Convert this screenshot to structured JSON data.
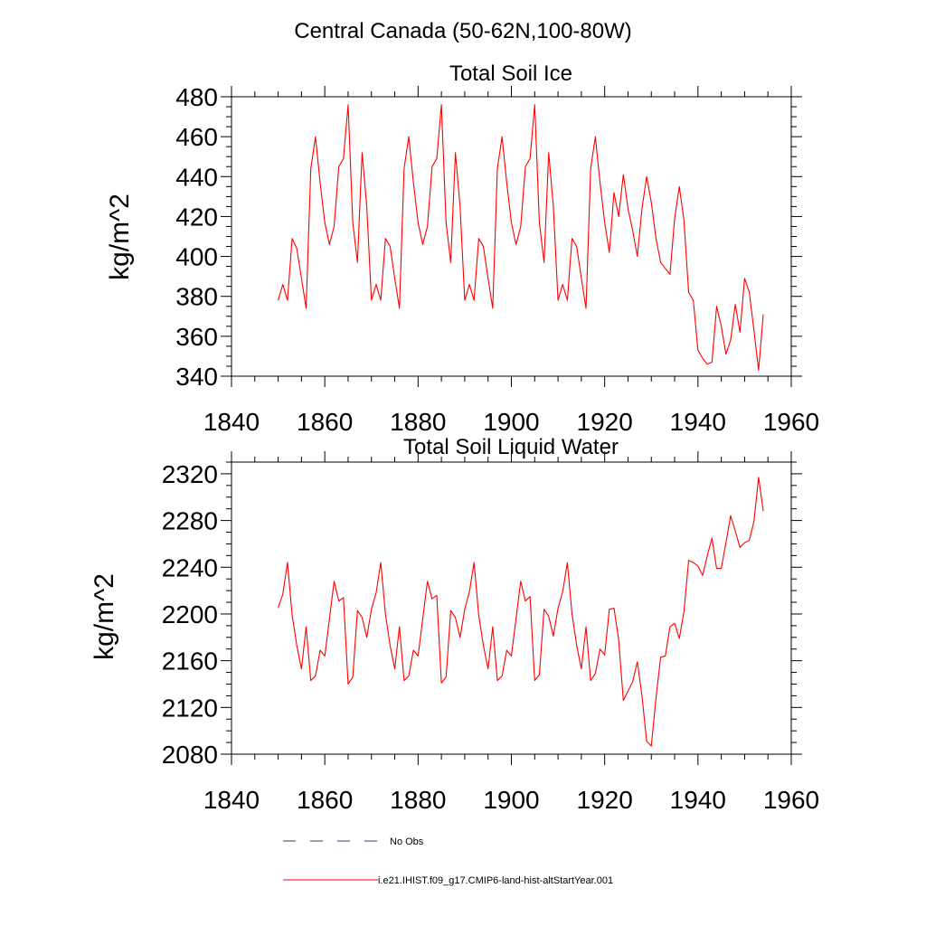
{
  "suptitle": "Central Canada (50-62N,100-80W)",
  "legend": [
    {
      "label": "No Obs",
      "color": "#3a3a7a",
      "dash": true
    },
    {
      "label": "i.e21.IHIST.f09_g17.CMIP6-land-hist-altStartYear.001",
      "color": "#ff0000",
      "dash": false
    }
  ],
  "chart_data": [
    {
      "type": "line",
      "title": "Total Soil Ice",
      "xlabel": "",
      "ylabel": "kg/m^2",
      "xlim": [
        1840,
        1960
      ],
      "ylim": [
        340,
        480
      ],
      "xticks": [
        1840,
        1860,
        1880,
        1900,
        1920,
        1940,
        1960
      ],
      "yticks": [
        340,
        360,
        380,
        400,
        420,
        440,
        460,
        480
      ],
      "grid": false,
      "series": [
        {
          "color": "#ff0000",
          "x": [
            1850,
            1851,
            1852,
            1853,
            1854,
            1855,
            1856,
            1857,
            1858,
            1859,
            1860,
            1861,
            1862,
            1863,
            1864,
            1865,
            1866,
            1867,
            1868,
            1869,
            1870,
            1871,
            1872,
            1873,
            1874,
            1875,
            1876,
            1877,
            1878,
            1879,
            1880,
            1881,
            1882,
            1883,
            1884,
            1885,
            1886,
            1887,
            1888,
            1889,
            1890,
            1891,
            1892,
            1893,
            1894,
            1895,
            1896,
            1897,
            1898,
            1899,
            1900,
            1901,
            1902,
            1903,
            1904,
            1905,
            1906,
            1907,
            1908,
            1909,
            1910,
            1911,
            1912,
            1913,
            1914,
            1915,
            1916,
            1917,
            1918,
            1919,
            1920,
            1921,
            1922,
            1923,
            1924,
            1925,
            1926,
            1927,
            1928,
            1929,
            1930,
            1931,
            1932,
            1933,
            1934,
            1935,
            1936,
            1937,
            1938,
            1939,
            1940,
            1941,
            1942,
            1943,
            1944,
            1945,
            1946,
            1947,
            1948,
            1949,
            1950,
            1951,
            1952,
            1953,
            1954
          ],
          "y": [
            378,
            386,
            378,
            409,
            404,
            389,
            374,
            444,
            460,
            437,
            417,
            406,
            415,
            445,
            449,
            476,
            417,
            397,
            452,
            425,
            378,
            386,
            378,
            409,
            405,
            389,
            374,
            444,
            460,
            437,
            417,
            406,
            415,
            445,
            449,
            476,
            417,
            397,
            452,
            425,
            378,
            386,
            378,
            409,
            405,
            389,
            374,
            444,
            460,
            437,
            417,
            406,
            415,
            445,
            449,
            476,
            417,
            397,
            452,
            425,
            378,
            386,
            378,
            409,
            405,
            389,
            374,
            444,
            460,
            437,
            417,
            402,
            432,
            420,
            441,
            424,
            413,
            400,
            424,
            440,
            427,
            409,
            397,
            394,
            391,
            419,
            435,
            418,
            382,
            378,
            353,
            349,
            346,
            347,
            375,
            365,
            351,
            358,
            376,
            362,
            389,
            382,
            363,
            343,
            371
          ]
        }
      ]
    },
    {
      "type": "line",
      "title": "Total Soil Liquid Water",
      "xlabel": "",
      "ylabel": "kg/m^2",
      "xlim": [
        1840,
        1960
      ],
      "ylim": [
        2080,
        2330
      ],
      "xticks": [
        1840,
        1860,
        1880,
        1900,
        1920,
        1940,
        1960
      ],
      "yticks": [
        2080,
        2120,
        2160,
        2200,
        2240,
        2280,
        2320
      ],
      "grid": false,
      "series": [
        {
          "color": "#ff0000",
          "x": [
            1850,
            1851,
            1852,
            1853,
            1854,
            1855,
            1856,
            1857,
            1858,
            1859,
            1860,
            1861,
            1862,
            1863,
            1864,
            1865,
            1866,
            1867,
            1868,
            1869,
            1870,
            1871,
            1872,
            1873,
            1874,
            1875,
            1876,
            1877,
            1878,
            1879,
            1880,
            1881,
            1882,
            1883,
            1884,
            1885,
            1886,
            1887,
            1888,
            1889,
            1890,
            1891,
            1892,
            1893,
            1894,
            1895,
            1896,
            1897,
            1898,
            1899,
            1900,
            1901,
            1902,
            1903,
            1904,
            1905,
            1906,
            1907,
            1908,
            1909,
            1910,
            1911,
            1912,
            1913,
            1914,
            1915,
            1916,
            1917,
            1918,
            1919,
            1920,
            1921,
            1922,
            1923,
            1924,
            1925,
            1926,
            1927,
            1928,
            1929,
            1930,
            1931,
            1932,
            1933,
            1934,
            1935,
            1936,
            1937,
            1938,
            1939,
            1940,
            1941,
            1942,
            1943,
            1944,
            1945,
            1946,
            1947,
            1948,
            1949,
            1950,
            1951,
            1952,
            1953,
            1954
          ],
          "y": [
            2205,
            2217,
            2244,
            2199,
            2173,
            2153,
            2189,
            2143,
            2147,
            2169,
            2164,
            2196,
            2228,
            2211,
            2214,
            2140,
            2146,
            2203,
            2197,
            2180,
            2204,
            2218,
            2244,
            2200,
            2173,
            2153,
            2189,
            2143,
            2147,
            2169,
            2164,
            2196,
            2228,
            2213,
            2216,
            2141,
            2146,
            2203,
            2197,
            2180,
            2204,
            2219,
            2244,
            2199,
            2173,
            2153,
            2189,
            2143,
            2147,
            2169,
            2164,
            2196,
            2228,
            2211,
            2215,
            2143,
            2148,
            2204,
            2198,
            2181,
            2205,
            2219,
            2244,
            2200,
            2173,
            2153,
            2189,
            2143,
            2149,
            2170,
            2165,
            2204,
            2205,
            2178,
            2126,
            2134,
            2142,
            2159,
            2130,
            2091,
            2087,
            2128,
            2163,
            2164,
            2189,
            2192,
            2179,
            2202,
            2246,
            2244,
            2241,
            2233,
            2250,
            2265,
            2239,
            2239,
            2261,
            2284,
            2271,
            2257,
            2261,
            2263,
            2279,
            2317,
            2288
          ]
        }
      ]
    }
  ]
}
